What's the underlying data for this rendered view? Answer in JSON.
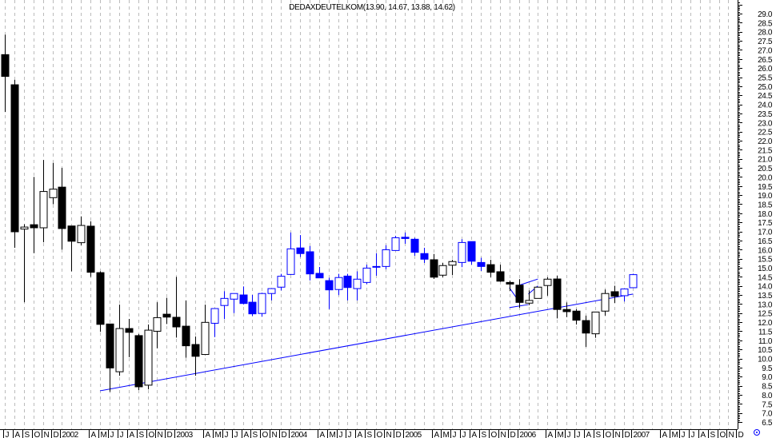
{
  "chart_data": {
    "type": "candlestick",
    "title": "DEDAXDEUTELKOM(13.90, 14.67, 13.88, 14.62)",
    "ylim": [
      6.5,
      29.0
    ],
    "y_ticks": [
      "29.0",
      "28.5",
      "28.0",
      "27.5",
      "27.0",
      "26.5",
      "26.0",
      "25.5",
      "25.0",
      "24.5",
      "24.0",
      "23.5",
      "23.0",
      "22.5",
      "22.0",
      "21.5",
      "21.0",
      "20.5",
      "20.0",
      "19.5",
      "19.0",
      "18.5",
      "18.0",
      "17.5",
      "17.0",
      "16.5",
      "16.0",
      "15.5",
      "15.0",
      "14.5",
      "14.0",
      "13.5",
      "13.0",
      "12.5",
      "12.0",
      "11.5",
      "11.0",
      "10.5",
      "10.0",
      "9.5",
      "9.0",
      "8.5",
      "8.0",
      "7.5",
      "7.0",
      "6.5"
    ],
    "x_labels": [
      "J",
      "A",
      "S",
      "O",
      "N",
      "D",
      "2002",
      "",
      "",
      "A",
      "M",
      "J",
      "J",
      "A",
      "S",
      "O",
      "N",
      "D",
      "2003",
      "",
      "",
      "A",
      "M",
      "J",
      "J",
      "A",
      "S",
      "O",
      "N",
      "D",
      "2004",
      "",
      "",
      "A",
      "M",
      "J",
      "J",
      "A",
      "S",
      "O",
      "N",
      "D",
      "2005",
      "",
      "",
      "A",
      "M",
      "J",
      "J",
      "A",
      "S",
      "O",
      "N",
      "D",
      "2006",
      "",
      "",
      "A",
      "M",
      "J",
      "J",
      "A",
      "S",
      "O",
      "N",
      "D",
      "2007",
      "",
      "",
      "A",
      "M",
      "J",
      "J",
      "A",
      "S",
      "O",
      "N",
      "D"
    ],
    "grid": "vertical dashed",
    "colors": {
      "black": "#000000",
      "blue": "#0000ff",
      "grid": "#bbbbbb"
    },
    "candles": [
      {
        "d": "2001-07",
        "o": 26.74,
        "h": 27.84,
        "l": 23.58,
        "c": 25.54,
        "col": "black"
      },
      {
        "d": "2001-08",
        "o": 25.08,
        "h": 25.35,
        "l": 16.1,
        "c": 16.98,
        "col": "black"
      },
      {
        "d": "2001-09",
        "o": 17.13,
        "h": 17.4,
        "l": 13.1,
        "c": 17.24,
        "col": "black"
      },
      {
        "d": "2001-10",
        "o": 17.37,
        "h": 20.0,
        "l": 15.8,
        "c": 17.2,
        "col": "black"
      },
      {
        "d": "2001-11",
        "o": 17.2,
        "h": 20.94,
        "l": 16.4,
        "c": 19.2,
        "col": "black"
      },
      {
        "d": "2001-12",
        "o": 18.86,
        "h": 20.77,
        "l": 18.5,
        "c": 19.33,
        "col": "black"
      },
      {
        "d": "2002-01",
        "o": 19.44,
        "h": 20.5,
        "l": 16.0,
        "c": 17.16,
        "col": "black"
      },
      {
        "d": "2002-02",
        "o": 17.3,
        "h": 17.3,
        "l": 14.8,
        "c": 16.46,
        "col": "black"
      },
      {
        "d": "2002-03",
        "o": 16.38,
        "h": 17.83,
        "l": 16.24,
        "c": 17.33,
        "col": "black"
      },
      {
        "d": "2002-04",
        "o": 17.29,
        "h": 17.56,
        "l": 14.5,
        "c": 14.75,
        "col": "black"
      },
      {
        "d": "2002-05",
        "o": 14.73,
        "h": 14.8,
        "l": 11.47,
        "c": 11.88,
        "col": "black"
      },
      {
        "d": "2002-06",
        "o": 11.9,
        "h": 11.9,
        "l": 8.16,
        "c": 9.48,
        "col": "black"
      },
      {
        "d": "2002-07",
        "o": 9.27,
        "h": 12.97,
        "l": 9.05,
        "c": 11.65,
        "col": "black"
      },
      {
        "d": "2002-08",
        "o": 11.65,
        "h": 12.18,
        "l": 10.07,
        "c": 11.44,
        "col": "black"
      },
      {
        "d": "2002-09",
        "o": 11.26,
        "h": 11.35,
        "l": 8.26,
        "c": 8.44,
        "col": "black"
      },
      {
        "d": "2002-10",
        "o": 8.53,
        "h": 11.87,
        "l": 8.3,
        "c": 11.56,
        "col": "black"
      },
      {
        "d": "2002-11",
        "o": 11.5,
        "h": 13.1,
        "l": 10.56,
        "c": 12.25,
        "col": "black"
      },
      {
        "d": "2002-12",
        "o": 12.44,
        "h": 13.34,
        "l": 11.9,
        "c": 12.28,
        "col": "black"
      },
      {
        "d": "2003-01",
        "o": 12.27,
        "h": 14.5,
        "l": 11.15,
        "c": 11.74,
        "col": "black"
      },
      {
        "d": "2003-02",
        "o": 11.78,
        "h": 13.2,
        "l": 10.04,
        "c": 10.7,
        "col": "black"
      },
      {
        "d": "2003-03",
        "o": 10.77,
        "h": 11.21,
        "l": 9.05,
        "c": 10.12,
        "col": "black"
      },
      {
        "d": "2003-04",
        "o": 10.22,
        "h": 12.97,
        "l": 10.18,
        "c": 11.99,
        "col": "black"
      },
      {
        "d": "2003-05",
        "o": 11.94,
        "h": 12.75,
        "l": 11.18,
        "c": 12.75,
        "col": "blue"
      },
      {
        "d": "2003-06",
        "o": 12.92,
        "h": 13.71,
        "l": 12.17,
        "c": 13.31,
        "col": "blue"
      },
      {
        "d": "2003-07",
        "o": 13.27,
        "h": 13.58,
        "l": 12.5,
        "c": 13.58,
        "col": "blue"
      },
      {
        "d": "2003-08",
        "o": 13.5,
        "h": 13.97,
        "l": 12.98,
        "c": 13.03,
        "col": "blue"
      },
      {
        "d": "2003-09",
        "o": 13.1,
        "h": 13.5,
        "l": 12.34,
        "c": 12.46,
        "col": "blue"
      },
      {
        "d": "2003-10",
        "o": 12.48,
        "h": 13.62,
        "l": 12.3,
        "c": 13.58,
        "col": "blue"
      },
      {
        "d": "2003-11",
        "o": 13.58,
        "h": 13.85,
        "l": 13.2,
        "c": 13.85,
        "col": "blue"
      },
      {
        "d": "2003-12",
        "o": 13.93,
        "h": 14.66,
        "l": 13.75,
        "c": 14.53,
        "col": "blue"
      },
      {
        "d": "2004-01",
        "o": 14.63,
        "h": 16.94,
        "l": 14.6,
        "c": 16.04,
        "col": "blue"
      },
      {
        "d": "2004-02",
        "o": 16.09,
        "h": 16.8,
        "l": 15.59,
        "c": 15.78,
        "col": "blue"
      },
      {
        "d": "2004-03",
        "o": 15.88,
        "h": 16.2,
        "l": 14.3,
        "c": 14.66,
        "col": "blue"
      },
      {
        "d": "2004-04",
        "o": 14.69,
        "h": 15.04,
        "l": 14.44,
        "c": 14.44,
        "col": "blue"
      },
      {
        "d": "2004-05",
        "o": 14.29,
        "h": 14.45,
        "l": 12.72,
        "c": 13.78,
        "col": "blue"
      },
      {
        "d": "2004-06",
        "o": 13.8,
        "h": 14.66,
        "l": 13.49,
        "c": 14.46,
        "col": "blue"
      },
      {
        "d": "2004-07",
        "o": 14.54,
        "h": 14.66,
        "l": 13.2,
        "c": 13.91,
        "col": "blue"
      },
      {
        "d": "2004-08",
        "o": 13.85,
        "h": 14.8,
        "l": 13.2,
        "c": 14.37,
        "col": "blue"
      },
      {
        "d": "2004-09",
        "o": 14.19,
        "h": 15.17,
        "l": 14.09,
        "c": 14.98,
        "col": "blue"
      },
      {
        "d": "2004-10",
        "o": 15.03,
        "h": 15.8,
        "l": 14.56,
        "c": 15.07,
        "col": "blue"
      },
      {
        "d": "2004-11",
        "o": 15.07,
        "h": 16.24,
        "l": 14.92,
        "c": 15.99,
        "col": "blue"
      },
      {
        "d": "2004-12",
        "o": 15.95,
        "h": 16.76,
        "l": 15.95,
        "c": 16.65,
        "col": "blue"
      },
      {
        "d": "2005-01",
        "o": 16.68,
        "h": 16.94,
        "l": 16.32,
        "c": 16.61,
        "col": "blue"
      },
      {
        "d": "2005-02",
        "o": 16.57,
        "h": 16.65,
        "l": 15.66,
        "c": 15.85,
        "col": "blue"
      },
      {
        "d": "2005-03",
        "o": 15.78,
        "h": 16.1,
        "l": 15.26,
        "c": 15.47,
        "col": "blue"
      },
      {
        "d": "2005-04",
        "o": 15.44,
        "h": 15.76,
        "l": 14.38,
        "c": 14.48,
        "col": "black"
      },
      {
        "d": "2005-05",
        "o": 14.59,
        "h": 15.26,
        "l": 14.48,
        "c": 15.12,
        "col": "black"
      },
      {
        "d": "2005-06",
        "o": 15.14,
        "h": 15.44,
        "l": 14.6,
        "c": 15.34,
        "col": "black"
      },
      {
        "d": "2005-07",
        "o": 15.29,
        "h": 16.57,
        "l": 15.03,
        "c": 16.39,
        "col": "blue"
      },
      {
        "d": "2005-08",
        "o": 16.44,
        "h": 16.44,
        "l": 15.17,
        "c": 15.36,
        "col": "blue"
      },
      {
        "d": "2005-09",
        "o": 15.29,
        "h": 15.55,
        "l": 14.82,
        "c": 15.07,
        "col": "blue"
      },
      {
        "d": "2005-10",
        "o": 15.17,
        "h": 15.44,
        "l": 14.48,
        "c": 14.75,
        "col": "black"
      },
      {
        "d": "2005-11",
        "o": 14.78,
        "h": 15.17,
        "l": 14.22,
        "c": 14.26,
        "col": "black"
      },
      {
        "d": "2005-12",
        "o": 14.19,
        "h": 14.29,
        "l": 13.71,
        "c": 14.1,
        "col": "black"
      },
      {
        "d": "2006-01",
        "o": 14.04,
        "h": 14.37,
        "l": 12.79,
        "c": 13.09,
        "col": "black"
      },
      {
        "d": "2006-02",
        "o": 13.05,
        "h": 13.75,
        "l": 12.94,
        "c": 13.2,
        "col": "black"
      },
      {
        "d": "2006-03",
        "o": 13.31,
        "h": 13.93,
        "l": 13.31,
        "c": 13.93,
        "col": "black"
      },
      {
        "d": "2006-04",
        "o": 14.02,
        "h": 14.48,
        "l": 13.46,
        "c": 14.37,
        "col": "black"
      },
      {
        "d": "2006-05",
        "o": 14.38,
        "h": 14.56,
        "l": 12.21,
        "c": 12.7,
        "col": "black"
      },
      {
        "d": "2006-06",
        "o": 12.7,
        "h": 13.09,
        "l": 12.28,
        "c": 12.58,
        "col": "black"
      },
      {
        "d": "2006-07",
        "o": 12.61,
        "h": 12.72,
        "l": 11.87,
        "c": 12.11,
        "col": "black"
      },
      {
        "d": "2006-08",
        "o": 12.09,
        "h": 12.36,
        "l": 10.64,
        "c": 11.4,
        "col": "black"
      },
      {
        "d": "2006-09",
        "o": 11.36,
        "h": 12.56,
        "l": 11.14,
        "c": 12.56,
        "col": "black"
      },
      {
        "d": "2006-10",
        "o": 12.61,
        "h": 13.8,
        "l": 12.36,
        "c": 13.58,
        "col": "black"
      },
      {
        "d": "2006-11",
        "o": 13.68,
        "h": 14.01,
        "l": 13.06,
        "c": 13.43,
        "col": "black"
      },
      {
        "d": "2006-12",
        "o": 13.46,
        "h": 13.83,
        "l": 13.14,
        "c": 13.83,
        "col": "blue"
      },
      {
        "d": "2007-01",
        "o": 13.9,
        "h": 14.67,
        "l": 13.88,
        "c": 14.62,
        "col": "blue"
      }
    ],
    "trendlines": [
      {
        "from": {
          "d": "2002-05",
          "p": 8.22
        },
        "to": {
          "d": "2007-01",
          "p": 13.55
        }
      },
      {
        "from": {
          "d": "2005-12",
          "p": 13.9
        },
        "to": {
          "d": "2006-01",
          "p": 13.15
        }
      },
      {
        "from": {
          "d": "2006-01",
          "p": 14.03
        },
        "to": {
          "d": "2006-03",
          "p": 14.38
        }
      },
      {
        "from": {
          "d": "2005-12",
          "p": 12.8
        },
        "to": {
          "d": "2006-02",
          "p": 12.97
        }
      },
      {
        "from": {
          "d": "2006-02",
          "p": 13.55
        },
        "to": {
          "d": "2006-03",
          "p": 14.0
        }
      }
    ],
    "corner_icon": "blue-crosshair-circle-icon"
  }
}
